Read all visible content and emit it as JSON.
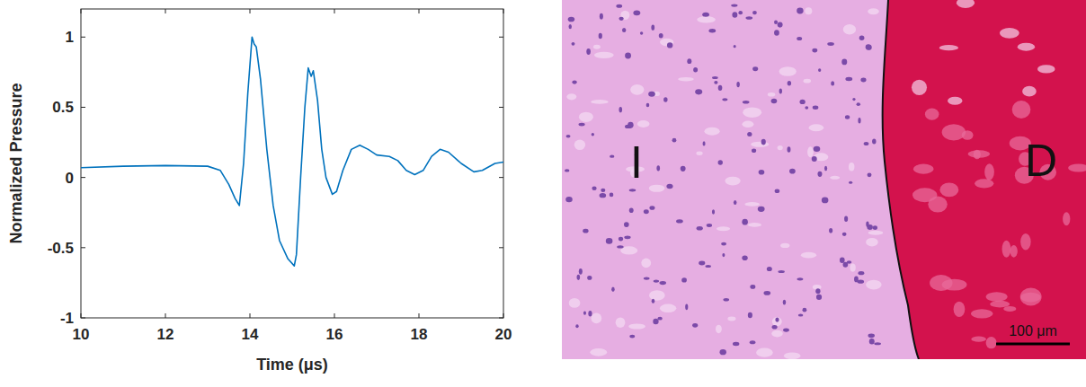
{
  "chart_data": {
    "type": "line",
    "x_label": "Time (μs)",
    "y_label": "Normalized Pressure",
    "x": [
      10,
      11,
      12,
      13,
      13.3,
      13.5,
      13.65,
      13.75,
      13.85,
      13.95,
      14.05,
      14.1,
      14.15,
      14.25,
      14.4,
      14.55,
      14.7,
      14.9,
      15.05,
      15.1,
      15.2,
      15.3,
      15.38,
      15.45,
      15.5,
      15.6,
      15.7,
      15.8,
      15.95,
      16.05,
      16.2,
      16.4,
      16.6,
      16.8,
      17.0,
      17.3,
      17.5,
      17.7,
      17.9,
      18.1,
      18.3,
      18.5,
      18.7,
      19.0,
      19.3,
      19.5,
      19.8,
      20
    ],
    "series": [
      {
        "color": "#0072bd",
        "values": [
          0.07,
          0.08,
          0.085,
          0.08,
          0.05,
          -0.05,
          -0.15,
          -0.2,
          0.1,
          0.6,
          1.0,
          0.95,
          0.93,
          0.7,
          0.2,
          -0.2,
          -0.45,
          -0.58,
          -0.63,
          -0.55,
          0.0,
          0.5,
          0.78,
          0.72,
          0.76,
          0.55,
          0.2,
          0.0,
          -0.12,
          -0.1,
          0.05,
          0.2,
          0.23,
          0.2,
          0.16,
          0.15,
          0.12,
          0.05,
          0.02,
          0.05,
          0.15,
          0.2,
          0.18,
          0.1,
          0.04,
          0.05,
          0.1,
          0.11
        ]
      }
    ],
    "xlim": [
      10,
      20
    ],
    "xticks": [
      10,
      12,
      14,
      16,
      18,
      20
    ],
    "ylim": [
      -1,
      1.2
    ],
    "yticks": [
      -1,
      -0.5,
      0,
      0.5,
      1
    ],
    "grid": false
  },
  "micrograph": {
    "region_labels": [
      "I",
      "D"
    ],
    "scale_bar_label": "100 μm"
  }
}
